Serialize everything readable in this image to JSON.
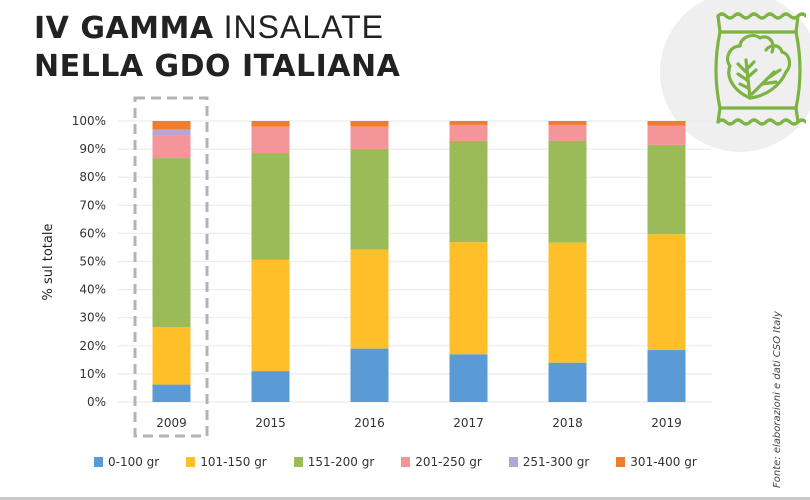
{
  "header": {
    "title_bold_1": "IV GAMMA",
    "title_light_1": "INSALATE",
    "title_line_2": "NELLA GDO ITALIANA"
  },
  "icon": {
    "name": "salad-bag-icon",
    "color": "#7cb342"
  },
  "source": "Fonte: elaborazioni e dati CSO Italy",
  "chart_data": {
    "type": "bar",
    "stacked": true,
    "title": "IV GAMMA INSALATE NELLA GDO ITALIANA",
    "xlabel": "",
    "ylabel": "% sul totale",
    "ylim": [
      0,
      100
    ],
    "yticks": [
      "0%",
      "10%",
      "20%",
      "30%",
      "40%",
      "50%",
      "60%",
      "70%",
      "80%",
      "90%",
      "100%"
    ],
    "grid": true,
    "legend_position": "bottom",
    "highlighted_category": "2009",
    "categories": [
      "2009",
      "2015",
      "2016",
      "2017",
      "2018",
      "2019"
    ],
    "series": [
      {
        "name": "0-100 gr",
        "color": "#5b9bd5",
        "values": [
          6.2,
          11.0,
          19.0,
          17.0,
          14.0,
          18.5
        ]
      },
      {
        "name": "101-150 gr",
        "color": "#ffbf29",
        "values": [
          20.5,
          39.6,
          35.2,
          39.9,
          42.7,
          41.2
        ]
      },
      {
        "name": "151-200 gr",
        "color": "#9bbb59",
        "values": [
          60.1,
          38.0,
          35.9,
          36.0,
          36.2,
          31.8
        ]
      },
      {
        "name": "201-250 gr",
        "color": "#f4959a",
        "values": [
          8.2,
          9.4,
          7.9,
          5.7,
          5.7,
          6.9
        ]
      },
      {
        "name": "251-300 gr",
        "color": "#b4a7d6",
        "values": [
          2.0,
          0.0,
          0.0,
          0.0,
          0.0,
          0.0
        ]
      },
      {
        "name": "301-400 gr",
        "color": "#ed7d31",
        "values": [
          3.0,
          2.0,
          2.0,
          1.4,
          1.4,
          1.6
        ]
      }
    ]
  }
}
